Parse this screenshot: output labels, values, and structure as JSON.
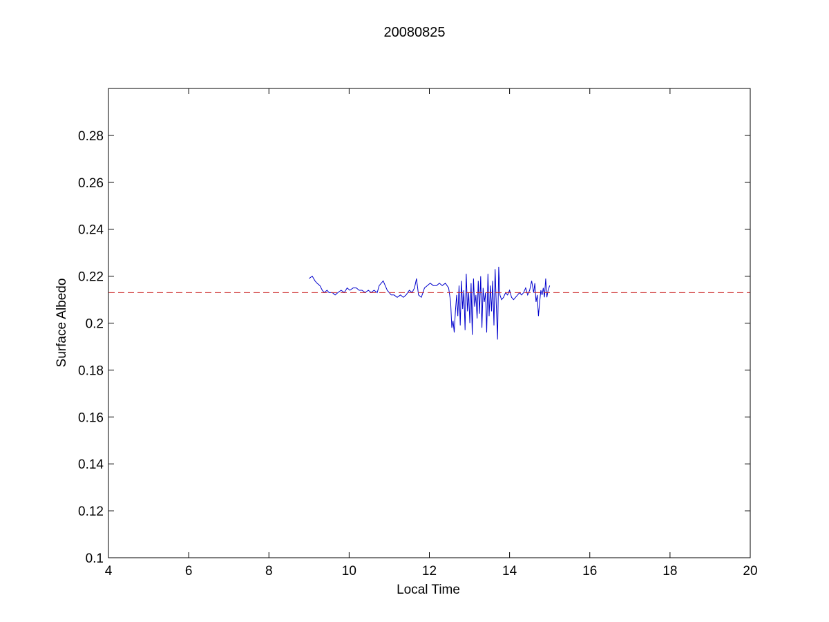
{
  "chart_data": {
    "type": "line",
    "title": "20080825",
    "xlabel": "Local Time",
    "ylabel": "Surface Albedo",
    "xlim": [
      4,
      20
    ],
    "ylim": [
      0.1,
      0.3
    ],
    "xticks": [
      4,
      6,
      8,
      10,
      12,
      14,
      16,
      18,
      20
    ],
    "yticks": [
      0.1,
      0.12,
      0.14,
      0.16,
      0.18,
      0.2,
      0.22,
      0.24,
      0.26,
      0.28
    ],
    "xtick_labels": [
      "4",
      "6",
      "8",
      "10",
      "12",
      "14",
      "16",
      "18",
      "20"
    ],
    "ytick_labels": [
      "0.1",
      "0.12",
      "0.14",
      "0.16",
      "0.18",
      "0.2",
      "0.22",
      "0.24",
      "0.26",
      "0.28"
    ],
    "grid": false,
    "legend": "none",
    "series": [
      {
        "style": "solid",
        "color": "#0000cc",
        "x": [
          9.0,
          9.08,
          9.15,
          9.2,
          9.27,
          9.33,
          9.38,
          9.45,
          9.5,
          9.58,
          9.65,
          9.72,
          9.8,
          9.88,
          9.95,
          10.02,
          10.1,
          10.18,
          10.25,
          10.32,
          10.4,
          10.48,
          10.55,
          10.62,
          10.7,
          10.75,
          10.8,
          10.85,
          10.9,
          10.95,
          11.0,
          11.05,
          11.12,
          11.2,
          11.28,
          11.35,
          11.42,
          11.5,
          11.57,
          11.63,
          11.68,
          11.73,
          11.8,
          11.88,
          11.95,
          12.02,
          12.1,
          12.18,
          12.25,
          12.32,
          12.4,
          12.48,
          12.53,
          12.56,
          12.59,
          12.62,
          12.65,
          12.68,
          12.71,
          12.74,
          12.77,
          12.8,
          12.83,
          12.86,
          12.89,
          12.92,
          12.95,
          12.98,
          13.01,
          13.04,
          13.07,
          13.1,
          13.13,
          13.16,
          13.19,
          13.22,
          13.25,
          13.28,
          13.31,
          13.34,
          13.37,
          13.4,
          13.43,
          13.46,
          13.49,
          13.52,
          13.55,
          13.58,
          13.61,
          13.64,
          13.67,
          13.7,
          13.73,
          13.76,
          13.8,
          13.85,
          13.9,
          13.95,
          14.0,
          14.05,
          14.1,
          14.15,
          14.2,
          14.25,
          14.3,
          14.35,
          14.4,
          14.45,
          14.5,
          14.55,
          14.6,
          14.63,
          14.66,
          14.69,
          14.72,
          14.75,
          14.78,
          14.81,
          14.84,
          14.87,
          14.9,
          14.93,
          14.96,
          15.0
        ],
        "y": [
          0.219,
          0.22,
          0.218,
          0.217,
          0.216,
          0.214,
          0.213,
          0.214,
          0.213,
          0.213,
          0.212,
          0.213,
          0.214,
          0.213,
          0.215,
          0.214,
          0.215,
          0.215,
          0.214,
          0.214,
          0.213,
          0.214,
          0.213,
          0.214,
          0.213,
          0.216,
          0.217,
          0.218,
          0.216,
          0.214,
          0.213,
          0.212,
          0.212,
          0.211,
          0.212,
          0.211,
          0.212,
          0.214,
          0.213,
          0.215,
          0.219,
          0.212,
          0.211,
          0.215,
          0.216,
          0.217,
          0.216,
          0.216,
          0.217,
          0.216,
          0.217,
          0.215,
          0.209,
          0.198,
          0.201,
          0.196,
          0.205,
          0.212,
          0.203,
          0.216,
          0.199,
          0.218,
          0.206,
          0.214,
          0.197,
          0.221,
          0.205,
          0.213,
          0.2,
          0.217,
          0.195,
          0.219,
          0.207,
          0.212,
          0.202,
          0.218,
          0.204,
          0.22,
          0.198,
          0.215,
          0.209,
          0.213,
          0.196,
          0.221,
          0.203,
          0.216,
          0.205,
          0.218,
          0.199,
          0.223,
          0.207,
          0.193,
          0.224,
          0.212,
          0.21,
          0.211,
          0.213,
          0.212,
          0.214,
          0.211,
          0.21,
          0.211,
          0.212,
          0.213,
          0.212,
          0.213,
          0.215,
          0.212,
          0.214,
          0.218,
          0.213,
          0.217,
          0.209,
          0.212,
          0.203,
          0.209,
          0.214,
          0.212,
          0.215,
          0.211,
          0.219,
          0.211,
          0.214,
          0.216
        ]
      },
      {
        "style": "dashed",
        "color": "#cc2222",
        "x": [
          4,
          20
        ],
        "y": [
          0.213,
          0.213
        ]
      }
    ]
  }
}
